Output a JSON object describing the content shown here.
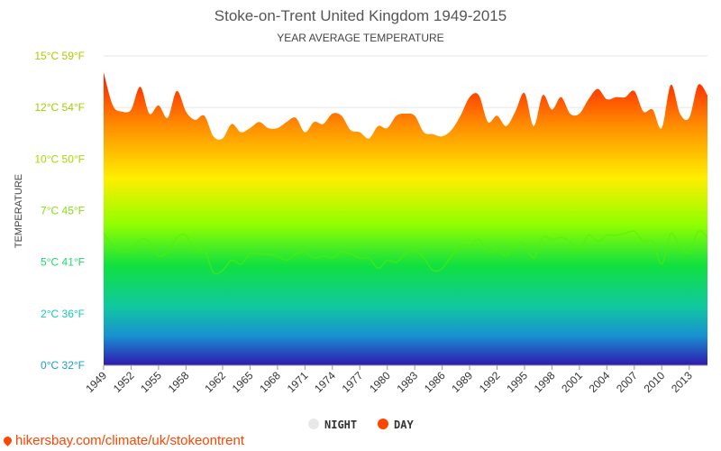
{
  "chart_data": {
    "type": "area",
    "title": "Stoke-on-Trent United Kingdom 1949-2015",
    "subtitle": "YEAR AVERAGE TEMPERATURE",
    "ylabel": "TEMPERATURE",
    "ylim": [
      0,
      15
    ],
    "yticks": [
      {
        "value": 0,
        "label": "0°C 32°F"
      },
      {
        "value": 2.5,
        "label": "2°C 36°F"
      },
      {
        "value": 5,
        "label": "5°C 41°F"
      },
      {
        "value": 7.5,
        "label": "7°C 45°F"
      },
      {
        "value": 10,
        "label": "10°C 50°F"
      },
      {
        "value": 12.5,
        "label": "12°C 54°F"
      },
      {
        "value": 15,
        "label": "15°C 59°F"
      }
    ],
    "x": [
      1949,
      1950,
      1951,
      1952,
      1953,
      1954,
      1955,
      1956,
      1957,
      1958,
      1959,
      1960,
      1961,
      1962,
      1963,
      1964,
      1965,
      1966,
      1967,
      1968,
      1969,
      1970,
      1971,
      1972,
      1973,
      1974,
      1975,
      1976,
      1977,
      1978,
      1979,
      1980,
      1981,
      1982,
      1983,
      1984,
      1985,
      1986,
      1987,
      1988,
      1989,
      1990,
      1991,
      1992,
      1993,
      1994,
      1995,
      1996,
      1997,
      1998,
      1999,
      2000,
      2001,
      2002,
      2003,
      2004,
      2005,
      2006,
      2007,
      2008,
      2009,
      2010,
      2011,
      2012,
      2013,
      2014,
      2015
    ],
    "xtick_labels": [
      "1949",
      "1952",
      "1955",
      "1958",
      "1962",
      "1965",
      "1968",
      "1971",
      "1974",
      "1977",
      "1980",
      "1983",
      "1986",
      "1989",
      "1992",
      "1995",
      "1998",
      "2001",
      "2004",
      "2007",
      "2010",
      "2013"
    ],
    "series": [
      {
        "name": "NIGHT",
        "color": "#e8e8e8",
        "values": [
          6.4,
          5.8,
          5.5,
          5.6,
          6.1,
          6.0,
          5.3,
          5.5,
          6.2,
          6.3,
          5.5,
          5.6,
          4.5,
          4.6,
          5.1,
          4.9,
          5.4,
          5.4,
          5.4,
          5.3,
          5.1,
          5.4,
          5.5,
          5.2,
          5.3,
          5.2,
          5.5,
          5.4,
          5.2,
          5.2,
          4.7,
          5.1,
          5.0,
          5.4,
          5.6,
          5.2,
          4.6,
          4.7,
          5.3,
          5.8,
          5.8,
          6.1,
          5.5,
          5.6,
          5.3,
          5.8,
          5.9,
          5.2,
          6.2,
          6.1,
          6.2,
          6.0,
          5.6,
          6.3,
          6.0,
          6.3,
          6.3,
          6.4,
          6.5,
          6.0,
          6.0,
          4.9,
          6.4,
          5.7,
          5.5,
          6.5,
          6.2
        ]
      },
      {
        "name": "DAY",
        "color": "#ff4500",
        "values": [
          14.2,
          12.6,
          12.3,
          12.4,
          13.5,
          12.2,
          12.6,
          12.0,
          13.3,
          12.3,
          11.9,
          12.1,
          11.1,
          11.0,
          11.7,
          11.3,
          11.5,
          11.8,
          11.5,
          11.5,
          11.8,
          12.0,
          11.3,
          11.8,
          11.7,
          12.2,
          12.1,
          11.4,
          11.3,
          11.0,
          11.6,
          11.5,
          12.1,
          12.2,
          12.1,
          11.3,
          11.2,
          11.1,
          11.4,
          12.1,
          13.0,
          13.1,
          11.8,
          12.1,
          11.6,
          12.3,
          13.2,
          11.6,
          13.1,
          12.4,
          13.0,
          12.2,
          12.2,
          12.9,
          13.4,
          12.9,
          13.0,
          13.0,
          13.3,
          12.3,
          12.4,
          11.5,
          13.6,
          12.2,
          12.0,
          13.6,
          13.1
        ]
      }
    ],
    "legend_position": "bottom-center",
    "grid": true
  },
  "legend": {
    "night_label": "NIGHT",
    "day_label": "DAY"
  },
  "watermark": "hikersbay.com/climate/uk/stokeontrent"
}
